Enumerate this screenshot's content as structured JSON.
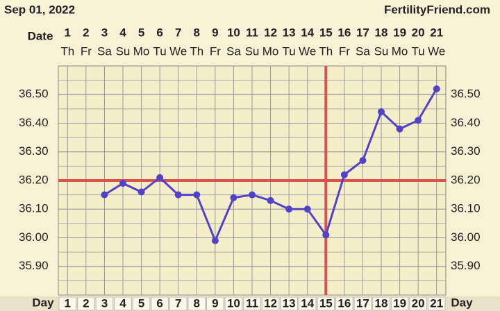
{
  "chart_data": {
    "type": "line",
    "date": "Sep 01, 2022",
    "site": "FertilityFriend.com",
    "date_label": "Date",
    "day_label": "Day",
    "x": [
      1,
      2,
      3,
      4,
      5,
      6,
      7,
      8,
      9,
      10,
      11,
      12,
      13,
      14,
      15,
      16,
      17,
      18,
      19,
      20,
      21
    ],
    "weekdays": [
      "Th",
      "Fr",
      "Sa",
      "Su",
      "Mo",
      "Tu",
      "We",
      "Th",
      "Fr",
      "Sa",
      "Su",
      "Mo",
      "Tu",
      "We",
      "Th",
      "Fr",
      "Sa",
      "Su",
      "Mo",
      "Tu",
      "We"
    ],
    "values": [
      null,
      null,
      36.15,
      36.19,
      36.16,
      36.21,
      36.15,
      36.15,
      35.99,
      36.14,
      36.15,
      36.13,
      36.1,
      36.1,
      36.01,
      36.22,
      36.27,
      36.44,
      36.38,
      36.41,
      36.52
    ],
    "color": "#5142c9",
    "coverline": 36.2,
    "ovulation_day": 15,
    "marker_color": "#d9534f",
    "xlim": [
      0.5,
      21.5
    ],
    "ylim": [
      35.8,
      36.6
    ],
    "yticks": [
      {
        "value": 35.9,
        "label": "35.90"
      },
      {
        "value": 36.0,
        "label": "36.00"
      },
      {
        "value": 36.1,
        "label": "36.10"
      },
      {
        "value": 36.2,
        "label": "36.20"
      },
      {
        "value": 36.3,
        "label": "36.30"
      },
      {
        "value": 36.4,
        "label": "36.40"
      },
      {
        "value": 36.5,
        "label": "36.50"
      }
    ],
    "grid": true
  }
}
